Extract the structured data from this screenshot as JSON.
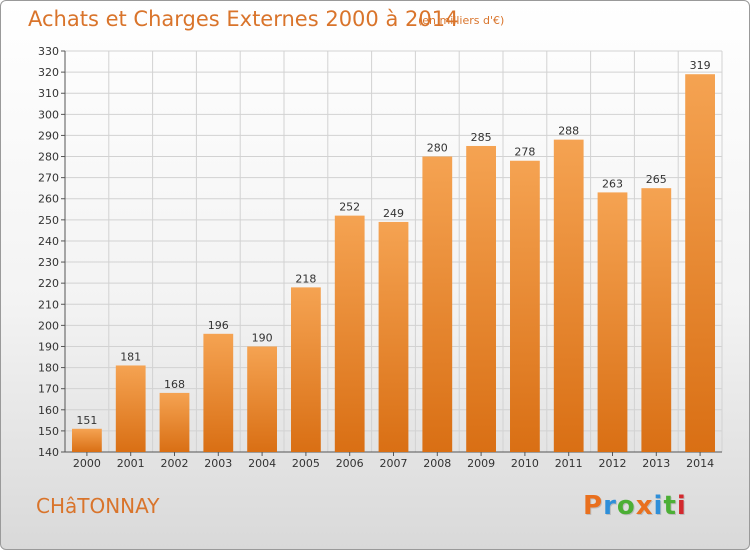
{
  "header": {
    "title": "Achats et Charges Externes 2000 à 2014",
    "unit": "(en milliers d'€)"
  },
  "footer": {
    "place": "CHâTONNAY",
    "logo": "Proxiti",
    "logo_colors": [
      "#e9701e",
      "#2f8fd9",
      "#4caf35",
      "#e9701e",
      "#2f8fd9",
      "#4caf35",
      "#d3292e"
    ]
  },
  "colors": {
    "accent": "#d9742b",
    "bar_top": "#f5a352",
    "bar_bottom": "#d96f14",
    "grid": "#d2d2d2"
  },
  "chart_data": {
    "type": "bar",
    "title": "Achats et Charges Externes 2000 à 2014",
    "subtitle": "(en milliers d'€)",
    "xlabel": "",
    "ylabel": "",
    "categories": [
      "2000",
      "2001",
      "2002",
      "2003",
      "2004",
      "2005",
      "2006",
      "2007",
      "2008",
      "2009",
      "2010",
      "2011",
      "2012",
      "2013",
      "2014"
    ],
    "values": [
      151,
      181,
      168,
      196,
      190,
      218,
      252,
      249,
      280,
      285,
      278,
      288,
      263,
      265,
      319
    ],
    "ylim": [
      140,
      330
    ],
    "yticks": [
      140,
      150,
      160,
      170,
      180,
      190,
      200,
      210,
      220,
      230,
      240,
      250,
      260,
      270,
      280,
      290,
      300,
      310,
      320,
      330
    ],
    "grid": true,
    "legend": "none"
  }
}
